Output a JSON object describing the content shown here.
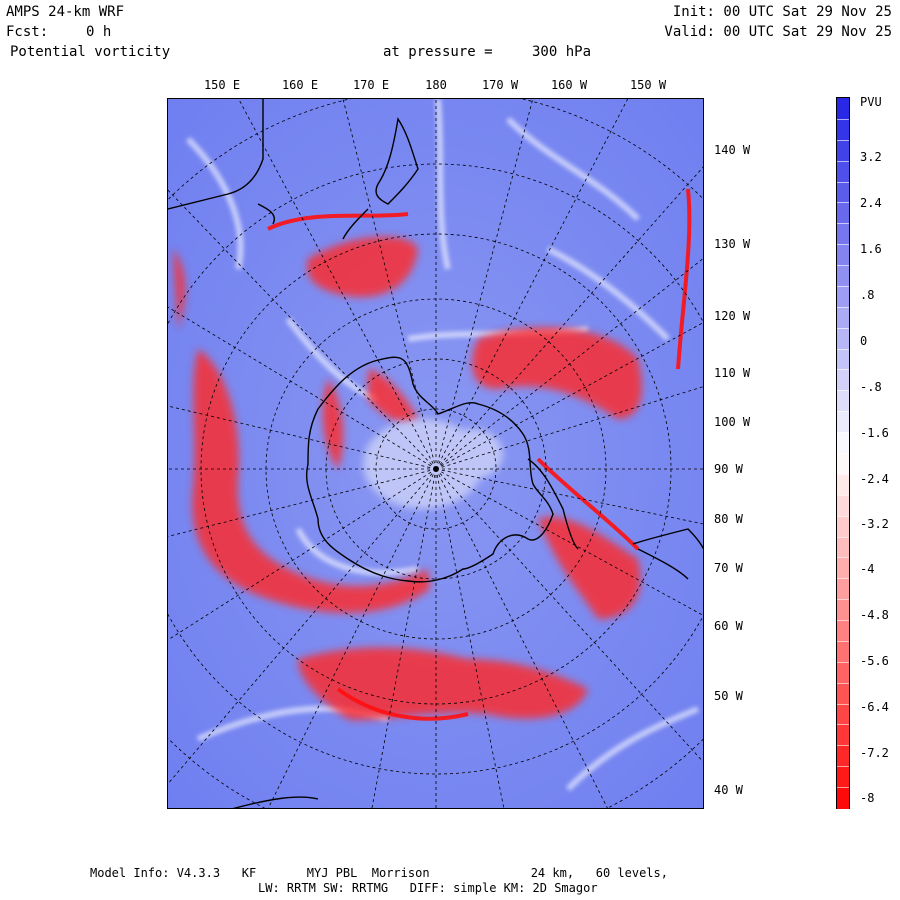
{
  "header": {
    "model": "AMPS 24-km WRF",
    "fcst_label": "Fcst:",
    "fcst_value": "0 h",
    "field": "Potential vorticity",
    "pressure_label": "at pressure =",
    "pressure_value": "300 hPa",
    "init": "Init: 00 UTC Sat 29 Nov 25",
    "valid": "Valid: 00 UTC Sat 29 Nov 25"
  },
  "map": {
    "top_longitudes": [
      "150 E",
      "160 E",
      "170 E",
      "180",
      "170 W",
      "160 W",
      "150 W"
    ],
    "right_longitudes": [
      "140 W",
      "130 W",
      "120 W",
      "110 W",
      "100 W",
      "90 W",
      "80 W",
      "70 W",
      "60 W",
      "50 W",
      "40 W"
    ],
    "colors": {
      "positive": "#6f7ff0",
      "negative": "#ff2a2a",
      "coast": "#000000"
    }
  },
  "colorbar": {
    "unit": "PVU",
    "labels": [
      "3.2",
      "2.4",
      "1.6",
      ".8",
      "0",
      "-.8",
      "-1.6",
      "-2.4",
      "-3.2",
      "-4",
      "-4.8",
      "-5.6",
      "-6.4",
      "-7.2",
      "-8"
    ]
  },
  "footer": {
    "line1": "Model Info: V4.3.3   KF       MYJ PBL  Morrison              24 km,   60 levels,",
    "line2": "LW: RRTM SW: RRTMG   DIFF: simple KM: 2D Smagor"
  }
}
